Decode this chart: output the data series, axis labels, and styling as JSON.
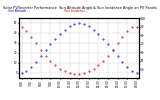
{
  "title": "Solar PV/Inverter Performance  Sun Altitude Angle & Sun Incidence Angle on PV Panels",
  "background_color": "#ffffff",
  "grid_color": "#bbbbbb",
  "title_fontsize": 2.5,
  "tick_fontsize": 2.0,
  "blue_color": "#0000cc",
  "red_color": "#cc0000",
  "x_times": [
    360,
    390,
    420,
    450,
    480,
    510,
    540,
    570,
    600,
    630,
    660,
    690,
    720,
    750,
    780,
    810,
    840,
    870,
    900,
    930,
    960,
    990,
    1020,
    1050,
    1080
  ],
  "sun_altitude": [
    0,
    2,
    6,
    11,
    17,
    23,
    29,
    34,
    39,
    43,
    47,
    49,
    50,
    49,
    47,
    43,
    39,
    34,
    29,
    23,
    17,
    11,
    6,
    2,
    0
  ],
  "sun_incidence": [
    90,
    85,
    78,
    71,
    63,
    56,
    50,
    45,
    41,
    38,
    36,
    35,
    35,
    36,
    38,
    41,
    45,
    50,
    56,
    63,
    71,
    78,
    85,
    90,
    90
  ],
  "ylim_left": [
    -5,
    55
  ],
  "ylim_right": [
    30,
    100
  ],
  "xlim": [
    345,
    1095
  ],
  "x_ticks": [
    360,
    420,
    480,
    540,
    600,
    660,
    720,
    780,
    840,
    900,
    960,
    1020,
    1080
  ],
  "x_tick_labels": [
    "6:00",
    "7:00",
    "8:00",
    "9:00",
    "10:00",
    "11:00",
    "12:00",
    "13:00",
    "14:00",
    "15:00",
    "16:00",
    "17:00",
    "18:00"
  ],
  "y_ticks_left": [
    0,
    10,
    20,
    30,
    40,
    50
  ],
  "y_tick_labels_left": [
    "0",
    "10",
    "20",
    "30",
    "40",
    "50"
  ],
  "y_ticks_right": [
    40,
    50,
    60,
    70,
    80,
    90,
    100
  ],
  "y_tick_labels_right": [
    "40",
    "50",
    "60",
    "70",
    "80",
    "90",
    "100"
  ],
  "legend_blue": "Sun Altitude --",
  "legend_red": "Sun Incidence --",
  "dot_size": 0.8
}
